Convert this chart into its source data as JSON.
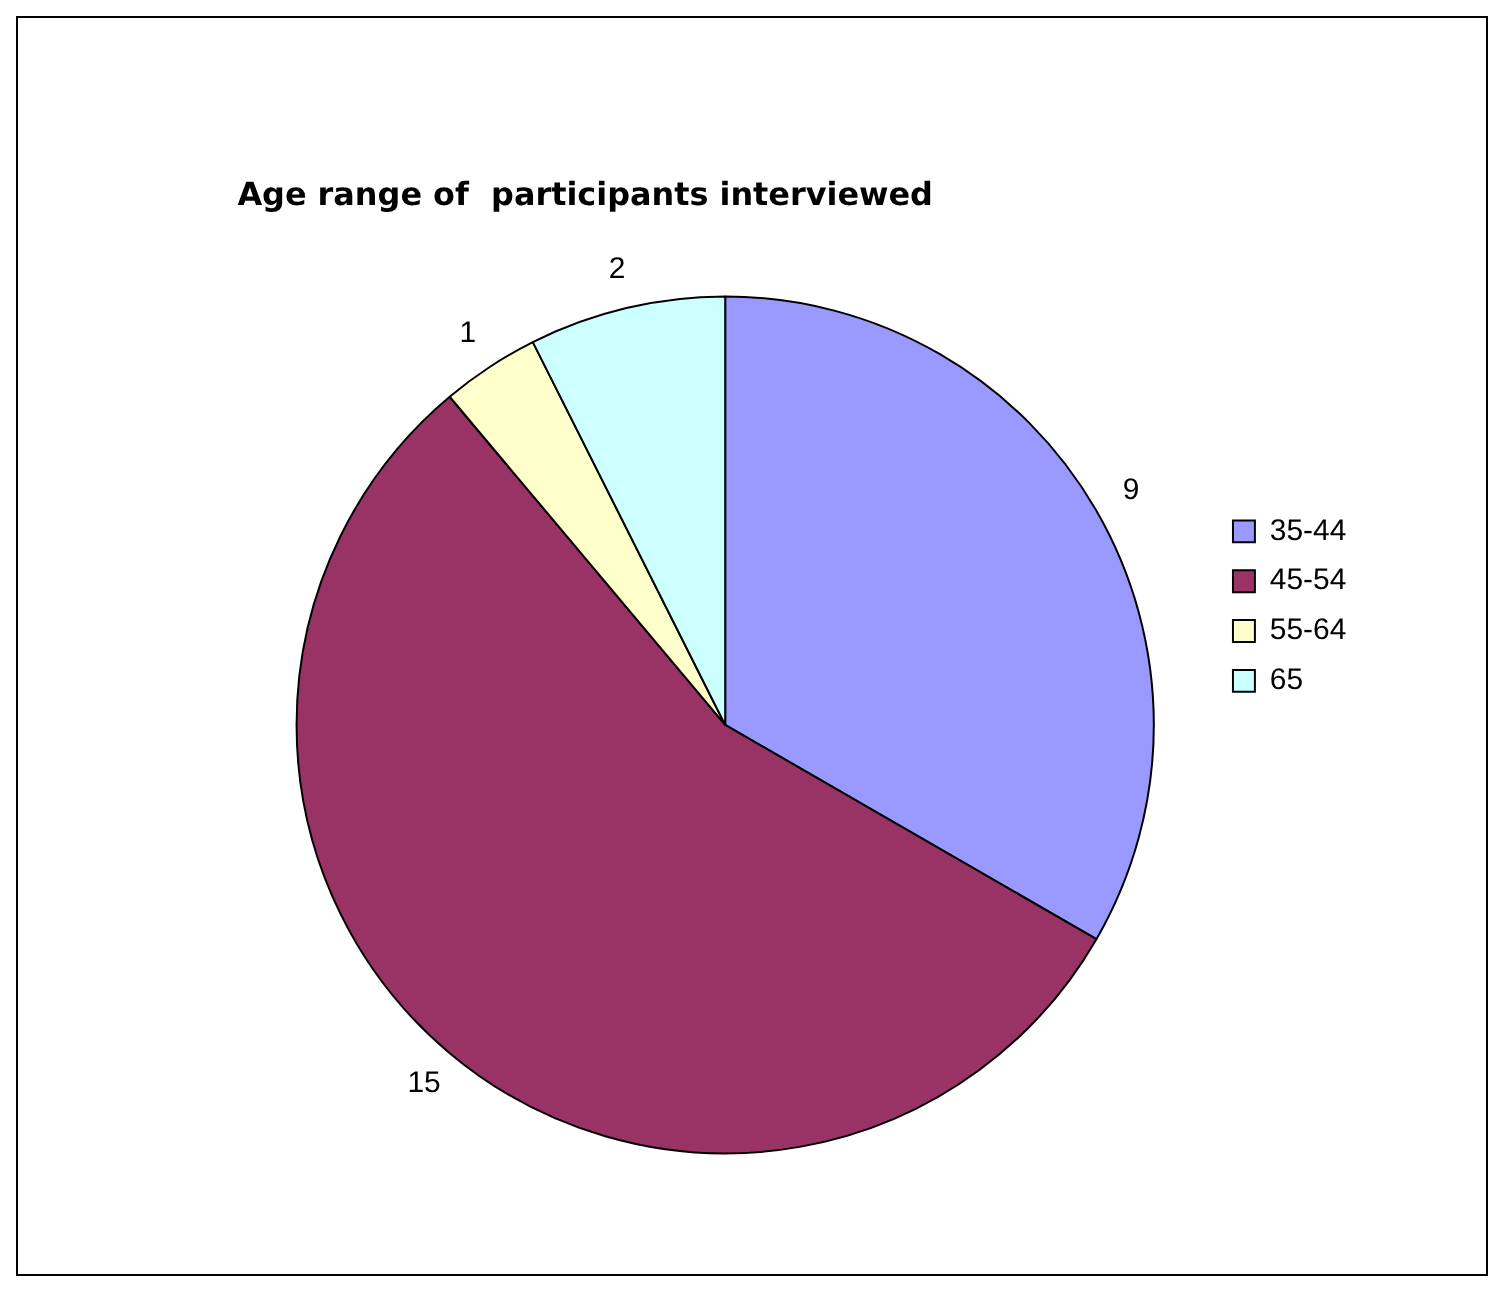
{
  "chart_data": {
    "type": "pie",
    "title": "Age range of  participants interviewed",
    "categories": [
      "35-44",
      "45-54",
      "55-64",
      "65"
    ],
    "values": [
      9,
      15,
      1,
      2
    ],
    "colors": [
      "#9999ff",
      "#993366",
      "#ffffcc",
      "#ccffff"
    ],
    "data_labels": true,
    "legend": "right"
  }
}
